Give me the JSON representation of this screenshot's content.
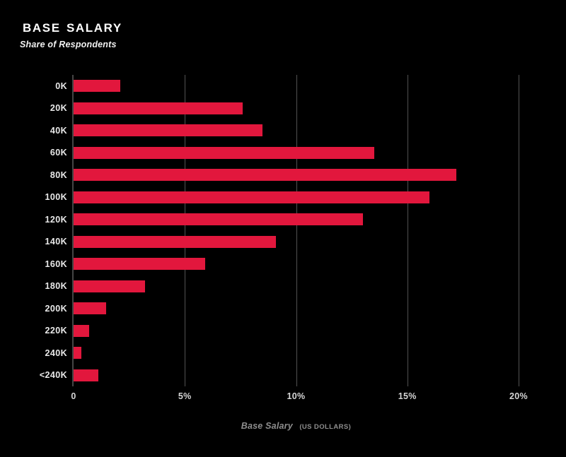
{
  "title": "BASE SALARY",
  "subtitle": "Share of Respondents",
  "colors": {
    "background": "#000000",
    "bar": "#e2173d",
    "gridline": "#525252",
    "axis_line": "#454545",
    "title_text": "#ffffff",
    "y_label_text": "#e9e9e9",
    "x_tick_text": "#d6d6d6",
    "axis_title_text": "#8e8e8e"
  },
  "chart_data": {
    "type": "bar",
    "orientation": "horizontal",
    "title": "BASE SALARY",
    "subtitle": "Share of Respondents",
    "categories": [
      "0K",
      "20K",
      "40K",
      "60K",
      "80K",
      "100K",
      "120K",
      "140K",
      "160K",
      "180K",
      "200K",
      "220K",
      "240K",
      "<240K"
    ],
    "values": [
      2.1,
      7.6,
      8.5,
      13.5,
      17.2,
      16.0,
      13.0,
      9.1,
      5.9,
      3.2,
      1.45,
      0.7,
      0.35,
      1.1
    ],
    "unit": "%",
    "xlabel": "Base Salary",
    "xlabel_suffix": "(US DOLLARS)",
    "ylabel": "",
    "x_ticks": [
      "0",
      "5%",
      "10%",
      "15%",
      "20%"
    ],
    "x_tick_values": [
      0,
      5,
      10,
      15,
      20
    ],
    "xlim": [
      0,
      20
    ],
    "grid": "vertical-only",
    "legend": "none"
  }
}
